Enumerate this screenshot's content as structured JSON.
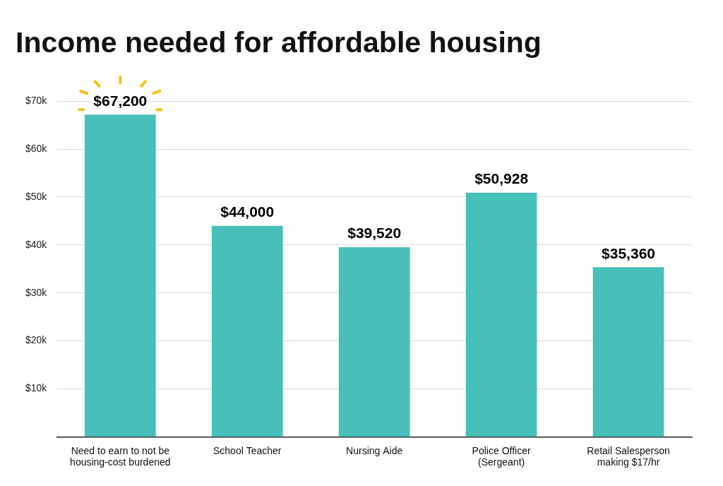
{
  "chart_data": {
    "type": "bar",
    "title": "Income needed for affordable housing",
    "categories": [
      "Need to earn to not be housing-cost burdened",
      "School Teacher",
      "Nursing Aide",
      "Police Officer (Sergeant)",
      "Retail Salesperson making $17/hr"
    ],
    "values": [
      67200,
      44000,
      39520,
      50928,
      35360
    ],
    "value_labels": [
      "$67,200",
      "$44,000",
      "$39,520",
      "$50,928",
      "$35,360"
    ],
    "color": "#48bfb8",
    "ylim": [
      0,
      70000
    ],
    "yticks": [
      {
        "value": 10000,
        "label": "$10k"
      },
      {
        "value": 20000,
        "label": "$20k"
      },
      {
        "value": 30000,
        "label": "$30k"
      },
      {
        "value": 40000,
        "label": "$40k"
      },
      {
        "value": 50000,
        "label": "$50k"
      },
      {
        "value": 60000,
        "label": "$60k"
      },
      {
        "value": 70000,
        "label": "$70k"
      }
    ],
    "grid": true,
    "data_labels": true
  }
}
